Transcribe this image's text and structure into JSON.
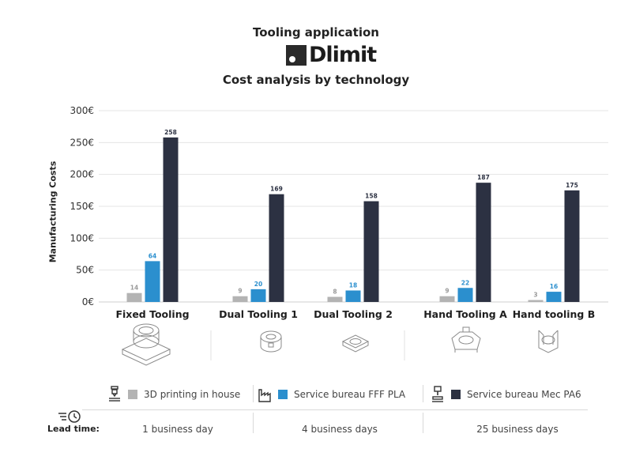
{
  "header": {
    "title": "Tooling application",
    "brand": "Dlimit",
    "subtitle": "Cost analysis by technology"
  },
  "chart_data": {
    "type": "bar",
    "title": "Cost analysis by technology",
    "xlabel": "",
    "ylabel": "Manufacturing Costs",
    "ylim": [
      0,
      300
    ],
    "yticks": [
      "0€",
      "50€",
      "100€",
      "150€",
      "200€",
      "250€",
      "300€"
    ],
    "grid": true,
    "categories": [
      "Fixed Tooling",
      "Dual Tooling 1",
      "Dual Tooling 2",
      "Hand Tooling A",
      "Hand tooling B"
    ],
    "series": [
      {
        "name": "3D printing in house",
        "color": "#b3b3b3",
        "label_color": "#9a9a9a",
        "values": [
          14,
          9,
          8,
          9,
          3
        ]
      },
      {
        "name": "Service bureau FFF PLA",
        "color": "#2b8fce",
        "label_color": "#2b8fce",
        "values": [
          64,
          20,
          18,
          22,
          16
        ]
      },
      {
        "name": "Service bureau Mec PA6",
        "color": "#2c3142",
        "label_color": "#2c3142",
        "values": [
          258,
          169,
          158,
          187,
          175
        ]
      }
    ],
    "legend_position": "bottom"
  },
  "legend_icons": [
    "3d-printer-icon",
    "factory-icon",
    "cnc-mill-icon"
  ],
  "lead_time": {
    "icon": "fast-clock-icon",
    "label": "Lead time:",
    "values": [
      "1 business day",
      "4 business days",
      "25 business days"
    ]
  }
}
